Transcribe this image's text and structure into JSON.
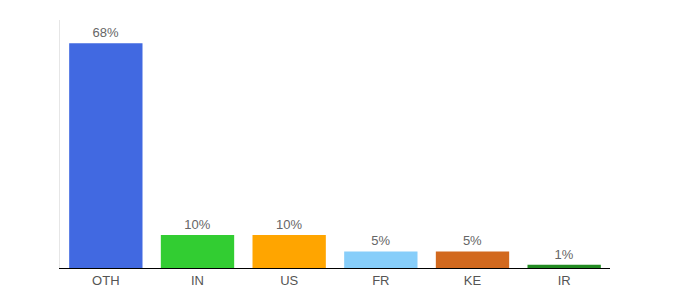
{
  "chart_data": {
    "type": "bar",
    "categories": [
      "OTH",
      "IN",
      "US",
      "FR",
      "KE",
      "IR"
    ],
    "values": [
      68,
      10,
      10,
      5,
      5,
      1
    ],
    "value_labels": [
      "68%",
      "10%",
      "10%",
      "5%",
      "5%",
      "1%"
    ],
    "colors": [
      "#4169e1",
      "#32cd32",
      "#ffa500",
      "#87cefa",
      "#d2691e",
      "#228b22"
    ],
    "ylim": [
      0,
      75
    ],
    "grid": false,
    "data_labels": true,
    "tick_labels": "x"
  }
}
